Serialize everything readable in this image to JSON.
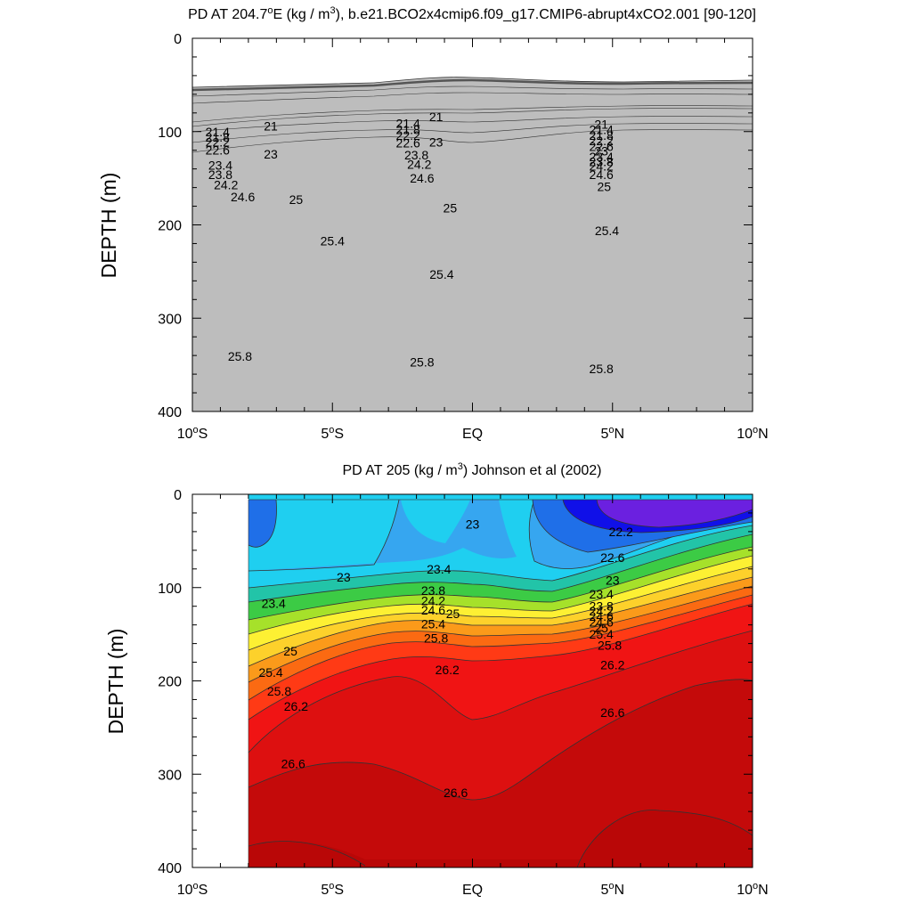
{
  "chart_data": [
    {
      "type": "contour",
      "title_prefix": "PD AT 204.7",
      "title_degree": "o",
      "title_after_lon": "E (kg / m",
      "title_exp": "3",
      "title_suffix": "), b.e21.BCO2x4cmip6.f09_g17.CMIP6-abrupt4xCO2.001 [90-120]",
      "ylabel": "DEPTH (m)",
      "xlim": [
        -10,
        10
      ],
      "ylim": [
        0,
        400
      ],
      "yticks": [
        "0",
        "100",
        "200",
        "300",
        "400"
      ],
      "xticks": [
        {
          "value": -10,
          "num": "10",
          "deg": "o",
          "hemi": "S"
        },
        {
          "value": -5,
          "num": "5",
          "deg": "o",
          "hemi": "S"
        },
        {
          "value": 0,
          "num": "EQ",
          "deg": "",
          "hemi": ""
        },
        {
          "value": 5,
          "num": "5",
          "deg": "o",
          "hemi": "N"
        },
        {
          "value": 10,
          "num": "10",
          "deg": "o",
          "hemi": "N"
        }
      ],
      "contour_labels": [
        {
          "text": "21",
          "lat": -7.2,
          "depth": 94
        },
        {
          "text": "21.4",
          "lat": -9.1,
          "depth": 100
        },
        {
          "text": "21.8",
          "lat": -9.1,
          "depth": 106
        },
        {
          "text": "22.2",
          "lat": -9.1,
          "depth": 111
        },
        {
          "text": "22.6",
          "lat": -9.1,
          "depth": 120
        },
        {
          "text": "23",
          "lat": -7.2,
          "depth": 124
        },
        {
          "text": "23.4",
          "lat": -9.0,
          "depth": 136
        },
        {
          "text": "23.8",
          "lat": -9.0,
          "depth": 146
        },
        {
          "text": "24.2",
          "lat": -8.8,
          "depth": 157
        },
        {
          "text": "24.6",
          "lat": -8.2,
          "depth": 170
        },
        {
          "text": "25",
          "lat": -6.3,
          "depth": 173
        },
        {
          "text": "21",
          "lat": -1.3,
          "depth": 84
        },
        {
          "text": "21.4",
          "lat": -2.3,
          "depth": 91
        },
        {
          "text": "21.8",
          "lat": -2.3,
          "depth": 98
        },
        {
          "text": "22.2",
          "lat": -2.3,
          "depth": 104
        },
        {
          "text": "22.6",
          "lat": -2.3,
          "depth": 112
        },
        {
          "text": "23",
          "lat": -1.3,
          "depth": 111
        },
        {
          "text": "23.8",
          "lat": -2.0,
          "depth": 125
        },
        {
          "text": "24.2",
          "lat": -1.9,
          "depth": 135
        },
        {
          "text": "24.6",
          "lat": -1.8,
          "depth": 150
        },
        {
          "text": "25",
          "lat": -0.8,
          "depth": 182
        },
        {
          "text": "25.4",
          "lat": -5.0,
          "depth": 217
        },
        {
          "text": "25.4",
          "lat": -1.1,
          "depth": 253
        },
        {
          "text": "21",
          "lat": 4.6,
          "depth": 92
        },
        {
          "text": "21.4",
          "lat": 4.6,
          "depth": 98
        },
        {
          "text": "21.8",
          "lat": 4.6,
          "depth": 104
        },
        {
          "text": "22.2",
          "lat": 4.6,
          "depth": 110
        },
        {
          "text": "22.6",
          "lat": 4.6,
          "depth": 116
        },
        {
          "text": "23",
          "lat": 4.6,
          "depth": 121
        },
        {
          "text": "23.4",
          "lat": 4.6,
          "depth": 127
        },
        {
          "text": "23.8",
          "lat": 4.6,
          "depth": 132
        },
        {
          "text": "24.2",
          "lat": 4.6,
          "depth": 137
        },
        {
          "text": "24.6",
          "lat": 4.6,
          "depth": 146
        },
        {
          "text": "25",
          "lat": 4.7,
          "depth": 159
        },
        {
          "text": "25.4",
          "lat": 4.8,
          "depth": 206
        },
        {
          "text": "25.8",
          "lat": -8.3,
          "depth": 341
        },
        {
          "text": "25.8",
          "lat": -1.8,
          "depth": 347
        },
        {
          "text": "25.8",
          "lat": 4.6,
          "depth": 354
        }
      ]
    },
    {
      "type": "contour",
      "title_prefix": "PD AT 205 (kg / m",
      "title_exp": "3",
      "title_suffix": ") Johnson et al (2002)",
      "ylabel": "DEPTH (m)",
      "xlim": [
        -10,
        10
      ],
      "ylim": [
        0,
        400
      ],
      "yticks": [
        "0",
        "100",
        "200",
        "300",
        "400"
      ],
      "xticks": [
        {
          "value": -10,
          "num": "10",
          "deg": "o",
          "hemi": "S"
        },
        {
          "value": -5,
          "num": "5",
          "deg": "o",
          "hemi": "S"
        },
        {
          "value": 0,
          "num": "EQ",
          "deg": "",
          "hemi": ""
        },
        {
          "value": 5,
          "num": "5",
          "deg": "o",
          "hemi": "N"
        },
        {
          "value": 10,
          "num": "10",
          "deg": "o",
          "hemi": "N"
        }
      ],
      "contour_labels": [
        {
          "text": "22.2",
          "lat": 5.3,
          "depth": 40
        },
        {
          "text": "22.6",
          "lat": 5.0,
          "depth": 68
        },
        {
          "text": "23",
          "lat": 0.0,
          "depth": 32
        },
        {
          "text": "23",
          "lat": -4.6,
          "depth": 89
        },
        {
          "text": "23",
          "lat": 5.0,
          "depth": 92
        },
        {
          "text": "23.4",
          "lat": -7.1,
          "depth": 117
        },
        {
          "text": "23.4",
          "lat": -1.2,
          "depth": 80
        },
        {
          "text": "23.4",
          "lat": 4.6,
          "depth": 107
        },
        {
          "text": "23.8",
          "lat": -1.4,
          "depth": 103
        },
        {
          "text": "23.8",
          "lat": 4.6,
          "depth": 120
        },
        {
          "text": "24.2",
          "lat": -1.4,
          "depth": 114
        },
        {
          "text": "24.2",
          "lat": 4.6,
          "depth": 125
        },
        {
          "text": "24.6",
          "lat": -1.4,
          "depth": 124
        },
        {
          "text": "24.6",
          "lat": 4.6,
          "depth": 131
        },
        {
          "text": "24.6",
          "lat": 4.6,
          "depth": 137
        },
        {
          "text": "25",
          "lat": -0.7,
          "depth": 128
        },
        {
          "text": "25",
          "lat": -6.5,
          "depth": 168
        },
        {
          "text": "25",
          "lat": 4.6,
          "depth": 143
        },
        {
          "text": "25.4",
          "lat": -1.4,
          "depth": 139
        },
        {
          "text": "25.4",
          "lat": -7.2,
          "depth": 191
        },
        {
          "text": "25.4",
          "lat": 4.6,
          "depth": 150
        },
        {
          "text": "25.8",
          "lat": -1.3,
          "depth": 154
        },
        {
          "text": "25.8",
          "lat": -6.9,
          "depth": 211
        },
        {
          "text": "25.8",
          "lat": 4.9,
          "depth": 162
        },
        {
          "text": "26.2",
          "lat": -0.9,
          "depth": 188
        },
        {
          "text": "26.2",
          "lat": -6.3,
          "depth": 227
        },
        {
          "text": "26.2",
          "lat": 5.0,
          "depth": 183
        },
        {
          "text": "26.6",
          "lat": -6.4,
          "depth": 289
        },
        {
          "text": "26.6",
          "lat": -0.6,
          "depth": 320
        },
        {
          "text": "26.6",
          "lat": 5.0,
          "depth": 234
        }
      ]
    }
  ]
}
